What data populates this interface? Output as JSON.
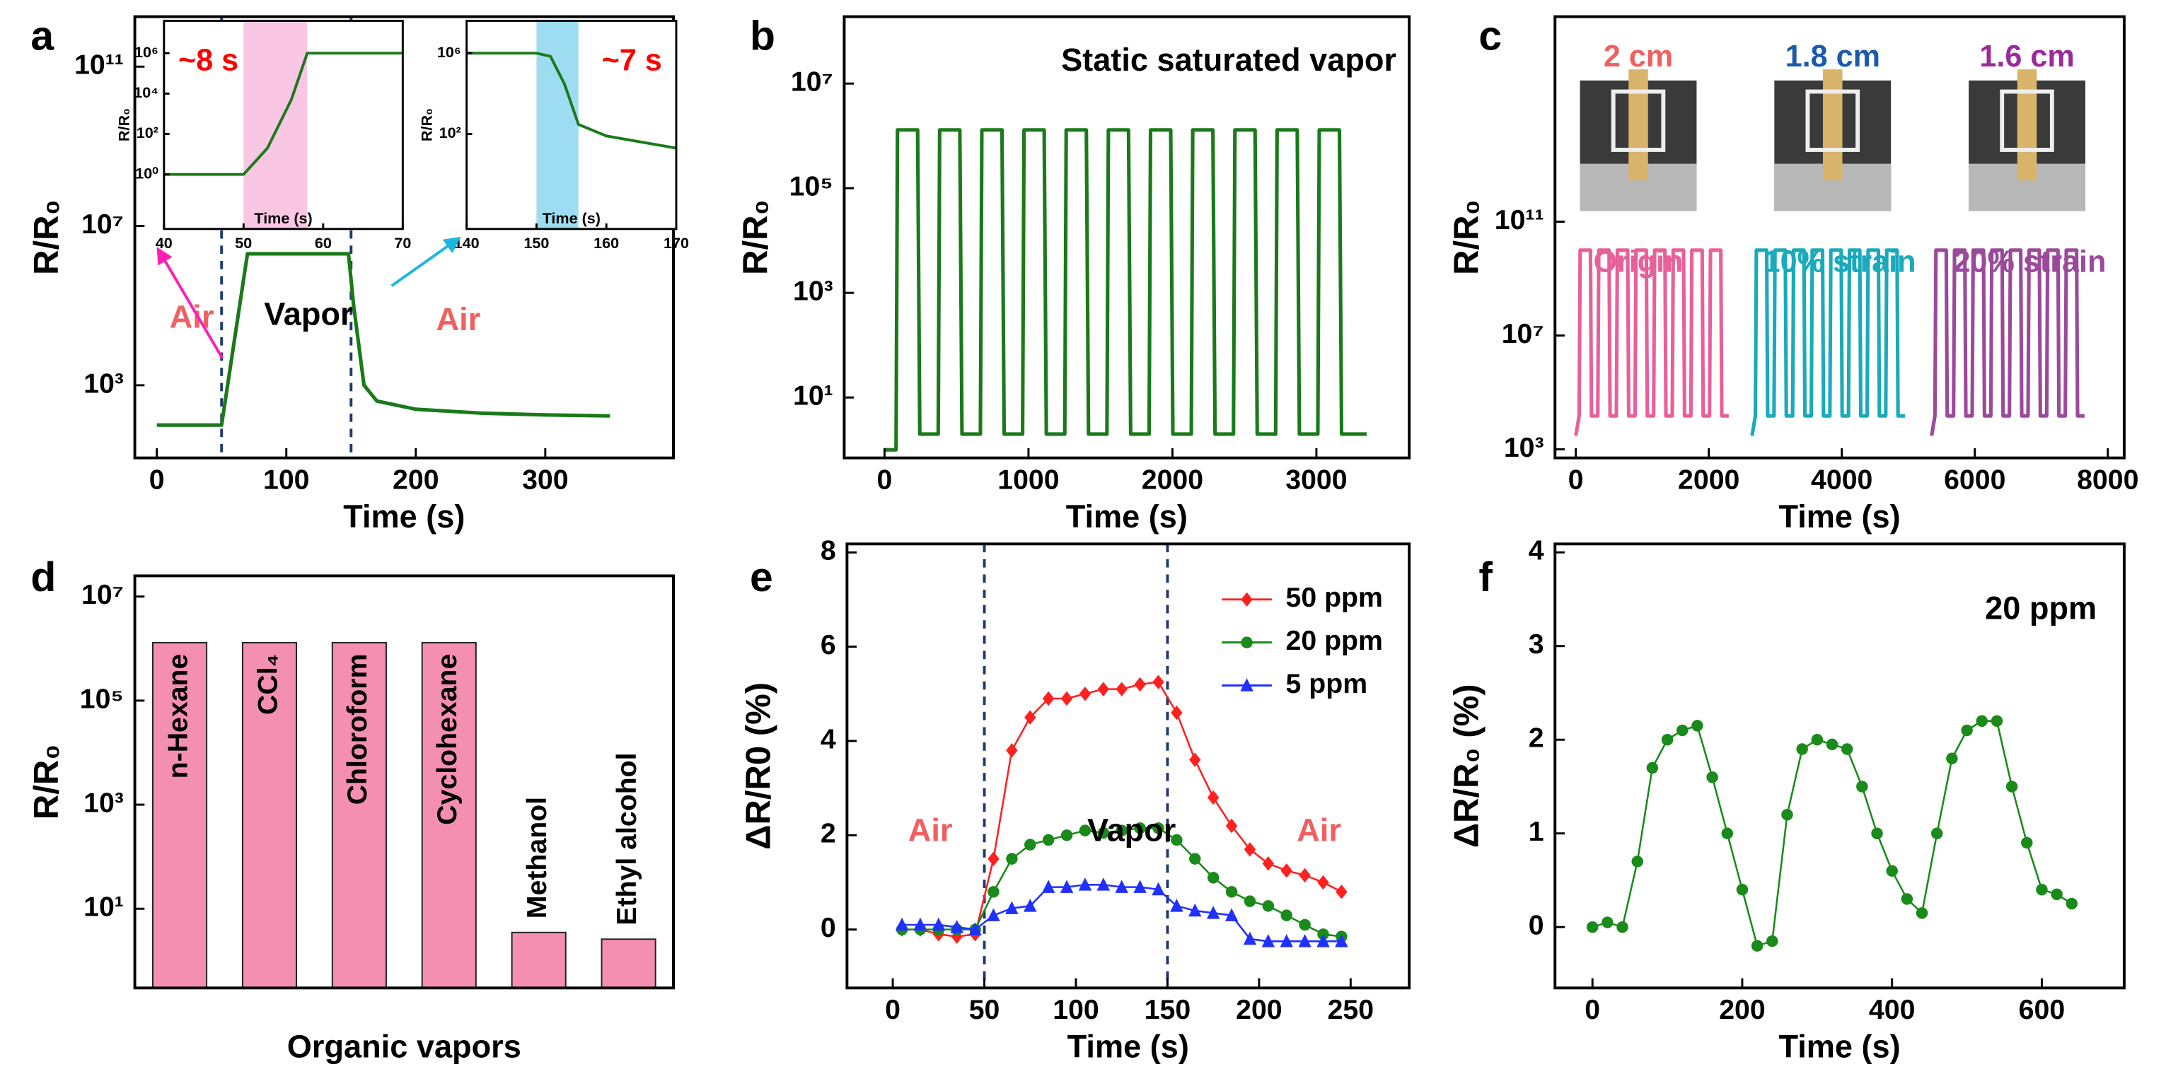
{
  "chart_data": [
    {
      "panel": "a",
      "type": "line",
      "xlabel": "Time (s)",
      "ylabel": "R/R₀",
      "ylog": true,
      "xlim": [
        -17,
        399
      ],
      "ylim": [
        15,
        1800000000000
      ],
      "xticks": [
        0,
        100,
        200,
        300
      ],
      "yticks": [
        {
          "value": 1000,
          "label": "10³"
        },
        {
          "value": 10000000,
          "label": "10⁷"
        },
        {
          "value": 100000000000,
          "label": "10¹¹"
        }
      ],
      "vlines": [
        50,
        150
      ],
      "annotations": [
        "Air",
        "Vapor",
        "Air"
      ],
      "series": [
        {
          "color": "#1a7a1a",
          "x": [
            0,
            50,
            70,
            148,
            152,
            160,
            170,
            200,
            250,
            300,
            350
          ],
          "values": [
            100,
            100,
            2000000,
            2000000,
            100000,
            1000,
            400,
            250,
            200,
            180,
            170
          ]
        }
      ]
    },
    {
      "type": "line",
      "xlabel": "Time (s)",
      "ylabel": "R/R₀",
      "ylog": true,
      "xlim": [
        40,
        70
      ],
      "ylim": [
        0.002,
        40000000
      ],
      "xticks": [
        40,
        50,
        60,
        70
      ],
      "yticks": [
        {
          "value": 1,
          "label": "10⁰"
        },
        {
          "value": 100,
          "label": "10²"
        },
        {
          "value": 10000,
          "label": "10⁴"
        },
        {
          "value": 1000000,
          "label": "10⁶"
        }
      ],
      "shaded": [
        50,
        58
      ],
      "shade_color": "#f9c6e3",
      "annotations": [
        "~8 s"
      ],
      "series": [
        {
          "color": "#1a7a1a",
          "x": [
            40,
            50,
            53,
            56,
            58,
            70
          ],
          "values": [
            1,
            1,
            20,
            5000,
            1000000,
            1000000
          ]
        }
      ]
    },
    {
      "type": "line",
      "xlabel": "Time (s)",
      "ylabel": "R/R₀",
      "ylog": true,
      "xlim": [
        140,
        170
      ],
      "ylim": [
        0.002,
        40000000
      ],
      "xticks": [
        140,
        150,
        160,
        170
      ],
      "yticks": [
        {
          "value": 100,
          "label": "10²"
        },
        {
          "value": 1000000,
          "label": "10⁶"
        }
      ],
      "shaded": [
        150,
        156
      ],
      "shade_color": "#9edcf2",
      "annotations": [
        "~7 s"
      ],
      "series": [
        {
          "color": "#1a7a1a",
          "x": [
            140,
            150,
            152,
            154,
            156,
            160,
            165,
            170
          ],
          "values": [
            1000000,
            1000000,
            700000,
            30000,
            300,
            80,
            40,
            20
          ]
        }
      ]
    },
    {
      "panel": "b",
      "type": "line",
      "xlabel": "Time (s)",
      "ylabel": "R/R₀",
      "ylog": true,
      "xlim": [
        -280,
        3645
      ],
      "ylim": [
        0.7,
        190000000
      ],
      "xticks": [
        0,
        1000,
        2000,
        3000
      ],
      "yticks": [
        {
          "value": 10,
          "label": "10¹"
        },
        {
          "value": 1000,
          "label": "10³"
        },
        {
          "value": 100000,
          "label": "10⁵"
        },
        {
          "value": 10000000,
          "label": "10⁷"
        }
      ],
      "annotations": [
        "Static saturated vapor"
      ],
      "series": [
        {
          "color": "#1a7a1a",
          "x": [
            0,
            80,
            90,
            230,
            245,
            373,
            383,
            523,
            538,
            666,
            676,
            816,
            831,
            959,
            969,
            1109,
            1124,
            1252,
            1262,
            1402,
            1417,
            1545,
            1555,
            1695,
            1710,
            1838,
            1848,
            1988,
            2003,
            2131,
            2141,
            2281,
            2296,
            2424,
            2434,
            2574,
            2589,
            2717,
            2727,
            2867,
            2882,
            3010,
            3020,
            3160,
            3175,
            3350
          ],
          "values": [
            1,
            1,
            1300000,
            1300000,
            2,
            2,
            1300000,
            1300000,
            2,
            2,
            1300000,
            1300000,
            2,
            2,
            1300000,
            1300000,
            2,
            2,
            1300000,
            1300000,
            2,
            2,
            1300000,
            1300000,
            2,
            2,
            1300000,
            1300000,
            2,
            2,
            1300000,
            1300000,
            2,
            2,
            1300000,
            1300000,
            2,
            2,
            1300000,
            1300000,
            2,
            2,
            1300000,
            1300000,
            2,
            2
          ]
        }
      ]
    },
    {
      "panel": "c",
      "type": "line",
      "xlabel": "Time (s)",
      "ylabel": "R/R₀",
      "ylog": true,
      "xlim": [
        -313,
        8246
      ],
      "ylim": [
        500,
        1600000000000000000
      ],
      "xticks": [
        0,
        2000,
        4000,
        6000,
        8000
      ],
      "yticks": [
        {
          "value": 1000,
          "label": "10³"
        },
        {
          "value": 10000000,
          "label": "10⁷"
        },
        {
          "value": 100000000000,
          "label": "10¹¹"
        }
      ],
      "photo_labels": [
        "2 cm",
        "1.8 cm",
        "1.6 cm"
      ],
      "series": [
        {
          "name": "Origin",
          "color": "#e8609a",
          "x": [
            0,
            50,
            65,
            220,
            235,
            330,
            345,
            500,
            515,
            610,
            625,
            780,
            795,
            890,
            905,
            1060,
            1075,
            1170,
            1185,
            1340,
            1355,
            1450,
            1465,
            1620,
            1635,
            1730,
            1745,
            1900,
            1915,
            2010,
            2025,
            2180,
            2195,
            2300
          ],
          "values": [
            3000,
            15000,
            10000000000,
            10000000000,
            15000,
            15000,
            10000000000,
            10000000000,
            15000,
            15000,
            10000000000,
            10000000000,
            15000,
            15000,
            10000000000,
            10000000000,
            15000,
            15000,
            10000000000,
            10000000000,
            15000,
            15000,
            10000000000,
            10000000000,
            15000,
            15000,
            10000000000,
            10000000000,
            15000,
            15000,
            10000000000,
            10000000000,
            15000,
            15000
          ]
        },
        {
          "name": "10% strain",
          "color": "#1aaabb",
          "x": [
            2650,
            2700,
            2715,
            2870,
            2885,
            2980,
            2995,
            3150,
            3165,
            3260,
            3275,
            3430,
            3445,
            3540,
            3555,
            3710,
            3725,
            3820,
            3835,
            3990,
            4005,
            4100,
            4115,
            4270,
            4285,
            4380,
            4395,
            4550,
            4565,
            4660,
            4675,
            4830,
            4845,
            4950
          ],
          "values": [
            3000,
            15000,
            10000000000,
            10000000000,
            15000,
            15000,
            10000000000,
            10000000000,
            15000,
            15000,
            10000000000,
            10000000000,
            15000,
            15000,
            10000000000,
            10000000000,
            15000,
            15000,
            10000000000,
            10000000000,
            15000,
            15000,
            10000000000,
            10000000000,
            15000,
            15000,
            10000000000,
            10000000000,
            15000,
            15000,
            10000000000,
            10000000000,
            15000,
            15000
          ]
        },
        {
          "name": "20% strain",
          "color": "#9b4a9b",
          "x": [
            5350,
            5400,
            5415,
            5570,
            5585,
            5680,
            5695,
            5850,
            5865,
            5960,
            5975,
            6130,
            6145,
            6240,
            6255,
            6410,
            6425,
            6520,
            6535,
            6690,
            6705,
            6800,
            6815,
            6970,
            6985,
            7080,
            7095,
            7250,
            7265,
            7360,
            7375,
            7530,
            7545,
            7650
          ],
          "values": [
            3000,
            15000,
            10000000000,
            10000000000,
            15000,
            15000,
            10000000000,
            10000000000,
            15000,
            15000,
            10000000000,
            10000000000,
            15000,
            15000,
            10000000000,
            10000000000,
            15000,
            15000,
            10000000000,
            10000000000,
            15000,
            15000,
            10000000000,
            10000000000,
            15000,
            15000,
            10000000000,
            10000000000,
            15000,
            15000,
            10000000000,
            10000000000,
            15000,
            15000
          ]
        }
      ]
    },
    {
      "panel": "d",
      "type": "bar",
      "xlabel": "Organic vapors",
      "ylabel": "R/R₀",
      "ylog": true,
      "ylim": [
        0.3,
        25000000
      ],
      "color": "#f48fb1",
      "yticks": [
        {
          "value": 10,
          "label": "10¹"
        },
        {
          "value": 1000,
          "label": "10³"
        },
        {
          "value": 100000,
          "label": "10⁵"
        },
        {
          "value": 10000000,
          "label": "10⁷"
        }
      ],
      "categories": [
        "n-Hexane",
        "CCl₄",
        "Chloroform",
        "Cyclohexane",
        "Methanol",
        "Ethyl alcohol"
      ],
      "values": [
        1300000,
        1300000,
        1300000,
        1300000,
        3.5,
        2.6
      ]
    },
    {
      "panel": "e",
      "type": "line",
      "xlabel": "Time (s)",
      "ylabel": "ΔR/R0 (%)",
      "xlim": [
        -25,
        282
      ],
      "ylim": [
        -1.24,
        8.18
      ],
      "xticks": [
        0,
        50,
        100,
        150,
        200,
        250
      ],
      "yticks": [
        0,
        2,
        4,
        6,
        8
      ],
      "vlines": [
        50,
        150
      ],
      "annotations": [
        "Air",
        "Vapor",
        "Air"
      ],
      "legend": "upper right",
      "x": [
        5,
        15,
        25,
        35,
        45,
        55,
        65,
        75,
        85,
        95,
        105,
        115,
        125,
        135,
        145,
        155,
        165,
        175,
        185,
        195,
        205,
        215,
        225,
        235,
        245
      ],
      "series": [
        {
          "name": "50 ppm",
          "color": "#ff2020",
          "marker": "diamond",
          "values": [
            0,
            0,
            -0.1,
            -0.15,
            -0.1,
            1.5,
            3.8,
            4.5,
            4.9,
            4.9,
            5.0,
            5.1,
            5.1,
            5.2,
            5.25,
            4.6,
            3.6,
            2.8,
            2.2,
            1.7,
            1.4,
            1.25,
            1.15,
            1.0,
            0.8
          ]
        },
        {
          "name": "20 ppm",
          "color": "#1a8a1a",
          "marker": "circle",
          "values": [
            0,
            0,
            0,
            0,
            0,
            0.8,
            1.5,
            1.8,
            1.9,
            2.0,
            2.1,
            2.05,
            2.1,
            2.15,
            2.15,
            1.9,
            1.5,
            1.1,
            0.8,
            0.6,
            0.5,
            0.3,
            0.1,
            -0.1,
            -0.15
          ]
        },
        {
          "name": "5 ppm",
          "color": "#2030ff",
          "marker": "triangle",
          "values": [
            0.1,
            0.1,
            0.1,
            0.05,
            0,
            0.3,
            0.45,
            0.5,
            0.9,
            0.9,
            0.95,
            0.95,
            0.9,
            0.9,
            0.85,
            0.5,
            0.4,
            0.35,
            0.3,
            -0.2,
            -0.25,
            -0.25,
            -0.25,
            -0.25,
            -0.25
          ]
        }
      ]
    },
    {
      "panel": "f",
      "type": "line",
      "xlabel": "Time (s)",
      "ylabel": "ΔR/R₀ (%)",
      "xlim": [
        -50,
        710
      ],
      "ylim": [
        -0.65,
        4.09
      ],
      "xticks": [
        0,
        200,
        400,
        600
      ],
      "yticks": [
        0,
        1,
        2,
        3,
        4
      ],
      "annotations": [
        "20 ppm"
      ],
      "x": [
        0,
        20,
        40,
        60,
        80,
        100,
        120,
        140,
        160,
        180,
        200,
        220,
        240,
        260,
        280,
        300,
        320,
        340,
        360,
        380,
        400,
        420,
        440,
        460,
        480,
        500,
        520,
        540,
        560,
        580,
        600,
        620,
        640
      ],
      "series": [
        {
          "color": "#1a8a1a",
          "marker": "circle",
          "values": [
            0,
            0.05,
            0,
            0.7,
            1.7,
            2.0,
            2.1,
            2.15,
            1.6,
            1.0,
            0.4,
            -0.2,
            -0.15,
            1.2,
            1.9,
            2.0,
            1.95,
            1.9,
            1.5,
            1.0,
            0.6,
            0.3,
            0.15,
            1.0,
            1.8,
            2.1,
            2.2,
            2.2,
            1.5,
            0.9,
            0.4,
            0.35,
            0.25
          ]
        }
      ]
    }
  ]
}
